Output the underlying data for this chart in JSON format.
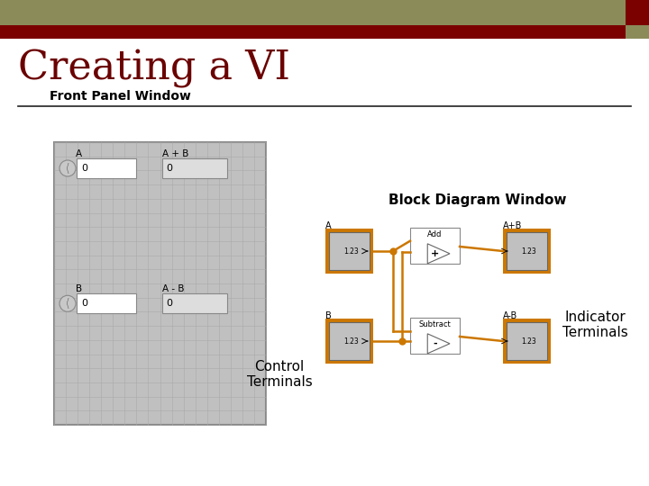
{
  "title": "Creating a VI",
  "subtitle": "Front Panel Window",
  "title_color": "#6B0000",
  "subtitle_color": "#000000",
  "bg_color": "#FFFFFF",
  "header_bar1_color": "#8B8B5A",
  "header_bar2_color": "#7B0000",
  "header_accent_top_color": "#7B0000",
  "header_accent_bot_color": "#8B8B5A",
  "wire_color": "#CC7700",
  "orange_border": "#CC7700",
  "front_panel_bg": "#C0C0C0",
  "front_panel_grid": "#AAAAAA",
  "block_diagram_title": "Block Diagram Window",
  "control_terminals_label": "Control\nTerminals",
  "indicator_terminals_label": "Indicator\nTerminals"
}
